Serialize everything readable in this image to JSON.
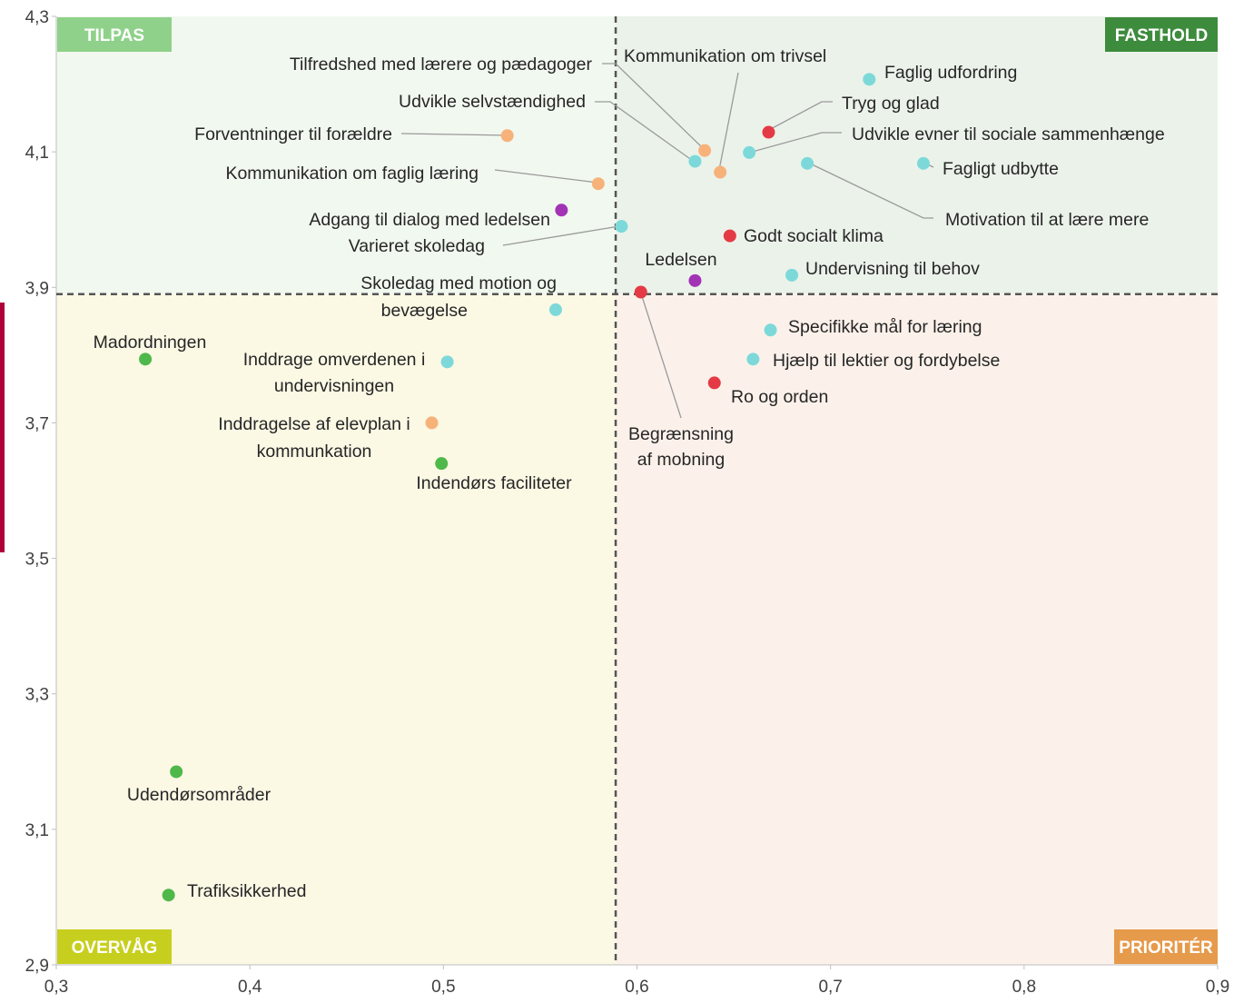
{
  "chart_data": {
    "type": "scatter",
    "title": "",
    "xlabel": "",
    "ylabel": "",
    "xlim": [
      0.3,
      0.9
    ],
    "ylim": [
      2.9,
      4.3
    ],
    "x_ticks": [
      "0,3",
      "0,4",
      "0,5",
      "0,6",
      "0,7",
      "0,8",
      "0,9"
    ],
    "y_ticks": [
      "2,9",
      "3,1",
      "3,3",
      "3,5",
      "3,7",
      "3,9",
      "4,1",
      "4,3"
    ],
    "threshold_x": 0.589,
    "threshold_y": 3.89,
    "grid": false,
    "quadrants": {
      "top_left": {
        "label": "TILPAS",
        "bg": "#f1f8ef",
        "badge": "#8fd18a"
      },
      "top_right": {
        "label": "FASTHOLD",
        "bg": "#ebf2ea",
        "badge": "#3d8b3d"
      },
      "bottom_left": {
        "label": "OVERVÅG",
        "bg": "#fbf8e4",
        "badge": "#c7cf1e"
      },
      "bottom_right": {
        "label": "PRIORITÉR",
        "bg": "#fcf1ea",
        "badge": "#e69a4b"
      }
    },
    "colors": {
      "teal": "#7dd9d9",
      "orange": "#f7b27a",
      "red": "#e43a45",
      "purple": "#a233b5",
      "green": "#4fb84a"
    },
    "points": [
      {
        "label": "Faglig udfordring",
        "x": 0.72,
        "y": 4.207,
        "color": "teal"
      },
      {
        "label": "Tryg og glad",
        "x": 0.668,
        "y": 4.129,
        "color": "red"
      },
      {
        "label": "Udvikle evner til sociale sammenhænge",
        "x": 0.658,
        "y": 4.099,
        "color": "teal"
      },
      {
        "label": "Fagligt udbytte",
        "x": 0.748,
        "y": 4.083,
        "color": "teal"
      },
      {
        "label": "Motivation til at lære mere",
        "x": 0.688,
        "y": 4.083,
        "color": "teal"
      },
      {
        "label": "Kommunikation om trivsel",
        "x": 0.643,
        "y": 4.07,
        "color": "orange"
      },
      {
        "label": "Tilfredshed med lærere og pædagoger",
        "x": 0.635,
        "y": 4.102,
        "color": "orange"
      },
      {
        "label": "Udvikle selvstændighed",
        "x": 0.63,
        "y": 4.086,
        "color": "teal"
      },
      {
        "label": "Forventninger til forældre",
        "x": 0.533,
        "y": 4.124,
        "color": "orange"
      },
      {
        "label": "Kommunikation om faglig læring",
        "x": 0.58,
        "y": 4.053,
        "color": "orange"
      },
      {
        "label": "Adgang til dialog med ledelsen",
        "x": 0.561,
        "y": 4.014,
        "color": "purple"
      },
      {
        "label": "Varieret skoledag",
        "x": 0.592,
        "y": 3.99,
        "color": "teal"
      },
      {
        "label": "Godt socialt klima",
        "x": 0.648,
        "y": 3.976,
        "color": "red"
      },
      {
        "label": "Undervisning til behov",
        "x": 0.68,
        "y": 3.918,
        "color": "teal"
      },
      {
        "label": "Ledelsen",
        "x": 0.63,
        "y": 3.91,
        "color": "purple"
      },
      {
        "label": "Begrænsning af mobning",
        "x": 0.602,
        "y": 3.893,
        "color": "red"
      },
      {
        "label": "Skoledag med motion og bevægelse",
        "x": 0.558,
        "y": 3.867,
        "color": "teal"
      },
      {
        "label": "Specifikke mål for læring",
        "x": 0.669,
        "y": 3.837,
        "color": "teal"
      },
      {
        "label": "Hjælp til lektier og fordybelse",
        "x": 0.66,
        "y": 3.794,
        "color": "teal"
      },
      {
        "label": "Ro og orden",
        "x": 0.64,
        "y": 3.759,
        "color": "red"
      },
      {
        "label": "Madordningen",
        "x": 0.346,
        "y": 3.794,
        "color": "green"
      },
      {
        "label": "Inddrage omverdenen i undervisningen",
        "x": 0.502,
        "y": 3.79,
        "color": "teal"
      },
      {
        "label": "Inddragelse af elevplan i kommunkation",
        "x": 0.494,
        "y": 3.7,
        "color": "orange"
      },
      {
        "label": "Indendørs faciliteter",
        "x": 0.499,
        "y": 3.64,
        "color": "green"
      },
      {
        "label": "Udendørsområder",
        "x": 0.362,
        "y": 3.185,
        "color": "green"
      },
      {
        "label": "Trafiksikkerhed",
        "x": 0.358,
        "y": 3.003,
        "color": "green"
      }
    ]
  }
}
